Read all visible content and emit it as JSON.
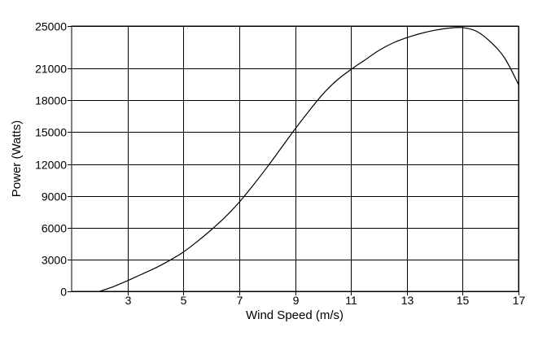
{
  "chart_data": {
    "type": "line",
    "title": "",
    "xlabel": "Wind Speed (m/s)",
    "ylabel": "Power (Watts)",
    "xlim": [
      1,
      17
    ],
    "ylim": [
      0,
      25000
    ],
    "x_ticks": [
      3,
      5,
      7,
      9,
      11,
      13,
      15,
      17
    ],
    "x_tick_labels": [
      "3",
      "5",
      "7",
      "9",
      "11",
      "13",
      "15",
      "17"
    ],
    "y_ticks": [
      0,
      3000,
      6000,
      9000,
      12000,
      15000,
      18000,
      21000,
      25000
    ],
    "y_tick_labels": [
      "0",
      "3000",
      "6000",
      "9000",
      "12000",
      "15000",
      "18000",
      "21000",
      "25000"
    ],
    "grid": true,
    "legend": "none",
    "line_color": "#000000",
    "grid_color": "#000000",
    "series": [
      {
        "x": [
          2.0,
          2.5,
          3,
          3.5,
          4,
          4.5,
          5,
          5.5,
          6,
          6.5,
          7,
          7.5,
          8,
          8.5,
          9,
          9.5,
          10,
          10.5,
          11,
          11.5,
          12,
          12.5,
          13,
          13.5,
          14,
          14.5,
          15,
          15.5,
          16,
          16.5,
          17
        ],
        "y": [
          0,
          450,
          1000,
          1600,
          2200,
          2900,
          3700,
          4700,
          5800,
          7000,
          8400,
          10000,
          11700,
          13500,
          15300,
          17000,
          18600,
          19900,
          20900,
          21800,
          22700,
          23400,
          23900,
          24300,
          24600,
          24800,
          24850,
          24500,
          23500,
          22000,
          19500
        ]
      }
    ]
  }
}
